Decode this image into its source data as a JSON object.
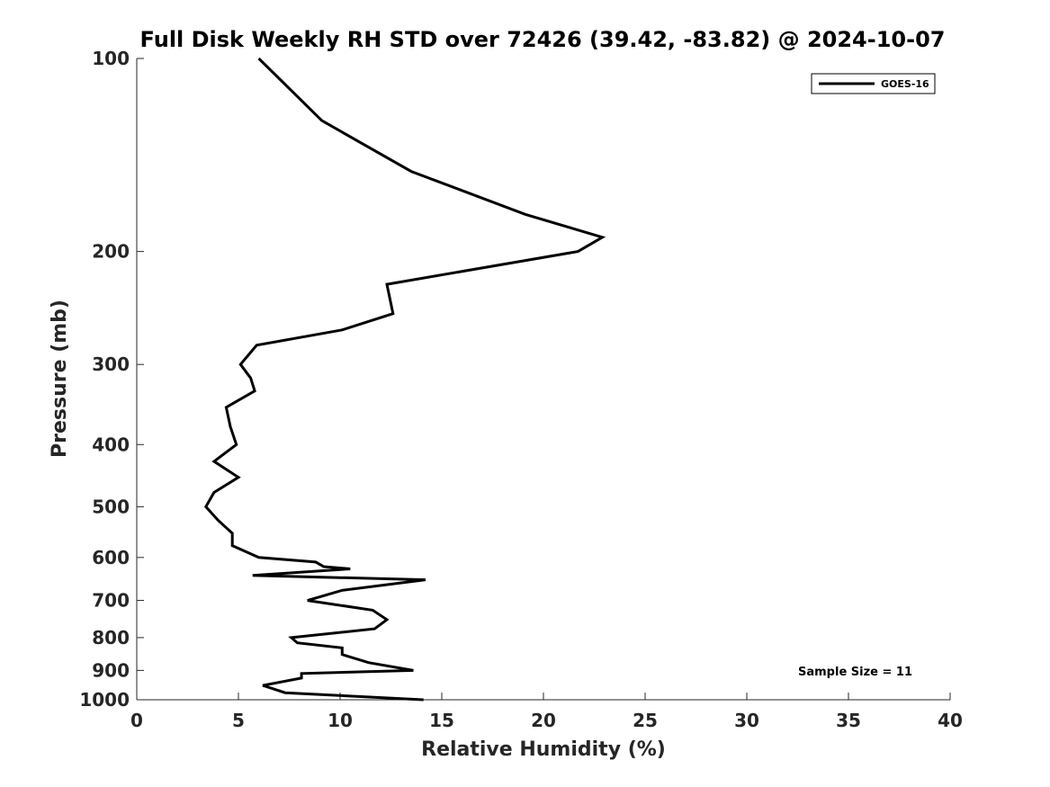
{
  "chart_data": {
    "type": "line",
    "title": "Full Disk Weekly RH STD over 72426 (39.42, -83.82) @ 2024-10-07",
    "xlabel": "Relative Humidity (%)",
    "ylabel": "Pressure (mb)",
    "xlim": [
      0,
      40
    ],
    "ylim": [
      100,
      1000
    ],
    "yscale": "log",
    "y_reversed": true,
    "xticks": [
      0,
      5,
      10,
      15,
      20,
      25,
      30,
      35,
      40
    ],
    "yticks": [
      100,
      200,
      300,
      400,
      500,
      600,
      700,
      800,
      900,
      1000
    ],
    "grid": false,
    "legend_position": "top-right",
    "annotation": "Sample Size = 11",
    "series": [
      {
        "name": "GOES-16",
        "color": "#000000",
        "x": [
          6.0,
          9.1,
          13.5,
          19.1,
          22.9,
          21.7,
          12.3,
          12.6,
          10.1,
          5.9,
          5.1,
          5.6,
          5.8,
          4.4,
          4.6,
          4.9,
          3.8,
          5.0,
          3.8,
          3.4,
          4.0,
          4.7,
          4.7,
          6.0,
          8.8,
          9.2,
          10.5,
          5.7,
          14.2,
          10.1,
          8.4,
          11.6,
          12.3,
          11.7,
          7.6,
          7.9,
          10.1,
          10.1,
          11.4,
          13.6,
          8.1,
          8.1,
          6.2,
          7.3,
          14.1
        ],
        "y": [
          100,
          125,
          150,
          175,
          190,
          200,
          225,
          250,
          265,
          280,
          300,
          315,
          330,
          350,
          375,
          400,
          425,
          450,
          475,
          500,
          525,
          550,
          575,
          600,
          610,
          620,
          625,
          640,
          650,
          675,
          700,
          725,
          750,
          775,
          800,
          815,
          830,
          850,
          875,
          900,
          910,
          925,
          950,
          975,
          1000
        ]
      }
    ]
  }
}
